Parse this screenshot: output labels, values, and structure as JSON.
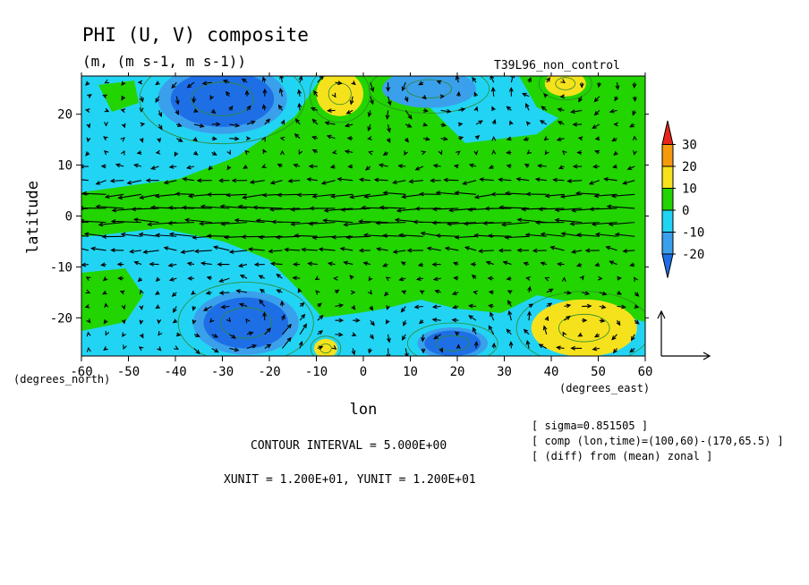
{
  "chart_data": {
    "type": "heatmap",
    "title": "PHI (U, V) composite",
    "subtitle": "(m, (m s-1, m s-1))",
    "run_label": "T39L96_non_control",
    "xlabel": "lon",
    "ylabel": "latitude",
    "x_units": "(degrees_east)",
    "y_units": "(degrees_north)",
    "xlim": [
      -60,
      60
    ],
    "ylim": [
      -27.5,
      27.5
    ],
    "x_ticks": [
      -60,
      -50,
      -40,
      -30,
      -20,
      -10,
      0,
      10,
      20,
      30,
      40,
      50,
      60
    ],
    "x_tick_labels": [
      "-60",
      "-50",
      "-40",
      "-30",
      "-20",
      "-10",
      "0",
      "10",
      "20",
      "30",
      "40",
      "50",
      "60"
    ],
    "y_ticks": [
      -20,
      -10,
      0,
      10,
      20
    ],
    "y_tick_labels": [
      "-20",
      "-10",
      "0",
      "10",
      "20"
    ],
    "colorbar": {
      "levels": [
        -30,
        -20,
        -10,
        0,
        10,
        20,
        30,
        40
      ],
      "labels": [
        "30",
        "20",
        "10",
        "0",
        "-10",
        "-20"
      ],
      "colors": [
        "#1e6fe6",
        "#3aa0ec",
        "#22d4f4",
        "#22d400",
        "#f6e21c",
        "#f59a0c",
        "#e8241c"
      ]
    },
    "footer": {
      "contour_interval": "CONTOUR INTERVAL = 5.000E+00",
      "units": "XUNIT = 1.200E+01, YUNIT = 1.200E+01",
      "info": [
        "[ sigma=0.851505 ]",
        "[ comp (lon,time)=(100,60)-(170,65.5) ]",
        "[ (diff) from (mean) zonal ]"
      ]
    },
    "regions": [
      {
        "name": "low-nw-center",
        "x": -30,
        "y": 23,
        "rx": 11,
        "ry": 5.5,
        "value": -22
      },
      {
        "name": "low-ne-center",
        "x": 14,
        "y": 25,
        "rx": 8,
        "ry": 3,
        "value": -12
      },
      {
        "name": "low-sw-center",
        "x": -25,
        "y": -21,
        "rx": 9,
        "ry": 5,
        "value": -22
      },
      {
        "name": "low-s-center",
        "x": 19,
        "y": -25,
        "rx": 6,
        "ry": 2.5,
        "value": -22
      },
      {
        "name": "high-n-center",
        "x": -5,
        "y": 24,
        "rx": 4,
        "ry": 3.5,
        "value": 12
      },
      {
        "name": "high-ne-center",
        "x": 43,
        "y": 26,
        "rx": 3.5,
        "ry": 2,
        "value": 12
      },
      {
        "name": "high-se-center",
        "x": 47,
        "y": -22,
        "rx": 9,
        "ry": 4.5,
        "value": 12
      },
      {
        "name": "high-s-center",
        "x": -8,
        "y": -26,
        "rx": 2,
        "ry": 1.5,
        "value": 12
      }
    ],
    "vector_reference": {
      "u": 12,
      "v": 12
    }
  }
}
